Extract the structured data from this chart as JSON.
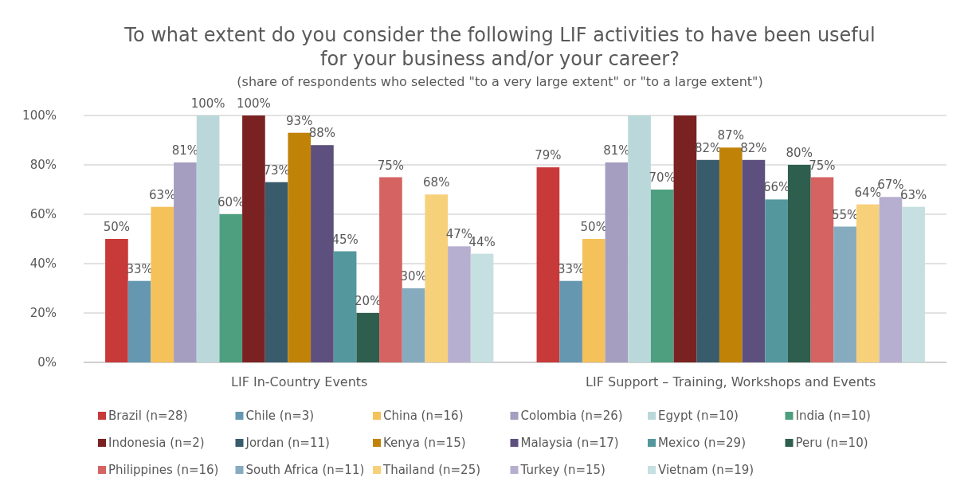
{
  "chart_data": {
    "type": "bar",
    "title": "To what extent do you consider the following LIF activities to have been useful for your business and/or your career?",
    "subtitle": "(share of respondents who selected \"to a very large extent\" or \"to a large extent\")",
    "categories": [
      "LIF In-Country Events",
      "LIF Support – Training, Workshops and Events"
    ],
    "ylim": [
      0,
      100
    ],
    "yticks": [
      {
        "value": 0,
        "label": "0%"
      },
      {
        "value": 20,
        "label": "20%"
      },
      {
        "value": 40,
        "label": "40%"
      },
      {
        "value": 60,
        "label": "60%"
      },
      {
        "value": 80,
        "label": "80%"
      },
      {
        "value": 100,
        "label": "100%"
      }
    ],
    "grid": "y",
    "legend": "bottom",
    "series": [
      {
        "name": "Brazil (n=28)",
        "color": "#c8393a",
        "values": [
          50,
          79
        ],
        "value_labels": [
          "50%",
          "79%"
        ]
      },
      {
        "name": "Chile (n=3)",
        "color": "#6598b0",
        "values": [
          33,
          33
        ],
        "value_labels": [
          "33%",
          "33%"
        ]
      },
      {
        "name": "China (n=16)",
        "color": "#f5c15a",
        "values": [
          63,
          50
        ],
        "value_labels": [
          "63%",
          "50%"
        ]
      },
      {
        "name": "Colombia (n=26)",
        "color": "#a59ec0",
        "values": [
          81,
          81
        ],
        "value_labels": [
          "81%",
          "81%"
        ]
      },
      {
        "name": "Egypt (n=10)",
        "color": "#bad8da",
        "values": [
          100,
          100
        ],
        "value_labels": [
          "100%",
          null
        ]
      },
      {
        "name": "India (n=10)",
        "color": "#4e9e80",
        "values": [
          60,
          70
        ],
        "value_labels": [
          "60%",
          "70%"
        ]
      },
      {
        "name": "Indonesia (n=2)",
        "color": "#7a2222",
        "values": [
          100,
          100
        ],
        "value_labels": [
          "100%",
          null
        ]
      },
      {
        "name": "Jordan (n=11)",
        "color": "#385c6b",
        "values": [
          73,
          82
        ],
        "value_labels": [
          "73%",
          "82%"
        ]
      },
      {
        "name": "Kenya (n=15)",
        "color": "#c08308",
        "values": [
          93,
          87
        ],
        "value_labels": [
          "93%",
          "87%"
        ]
      },
      {
        "name": "Malaysia (n=17)",
        "color": "#5d507e",
        "values": [
          88,
          82
        ],
        "value_labels": [
          "88%",
          "82%"
        ]
      },
      {
        "name": "Mexico (n=29)",
        "color": "#54989e",
        "values": [
          45,
          66
        ],
        "value_labels": [
          "45%",
          "66%"
        ]
      },
      {
        "name": "Peru (n=10)",
        "color": "#2e5e4e",
        "values": [
          20,
          80
        ],
        "value_labels": [
          "20%",
          "80%"
        ]
      },
      {
        "name": "Philippines (n=16)",
        "color": "#d46361",
        "values": [
          75,
          75
        ],
        "value_labels": [
          "75%",
          "75%"
        ]
      },
      {
        "name": "South Africa (n=11)",
        "color": "#86abbe",
        "values": [
          30,
          55
        ],
        "value_labels": [
          "30%",
          "55%"
        ]
      },
      {
        "name": "Thailand (n=25)",
        "color": "#f7d07a",
        "values": [
          68,
          64
        ],
        "value_labels": [
          "68%",
          "64%"
        ]
      },
      {
        "name": "Turkey (n=15)",
        "color": "#b7afcf",
        "values": [
          47,
          67
        ],
        "value_labels": [
          "47%",
          "67%"
        ]
      },
      {
        "name": "Vietnam (n=19)",
        "color": "#c6dfe0",
        "values": [
          44,
          63
        ],
        "value_labels": [
          "44%",
          "63%"
        ]
      }
    ]
  }
}
